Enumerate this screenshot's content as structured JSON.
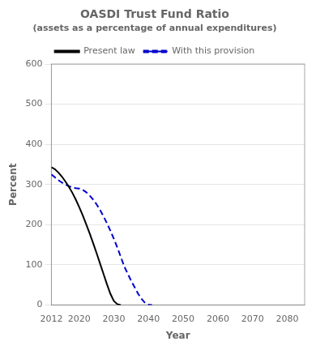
{
  "chart_data": {
    "type": "line",
    "title": "OASDI Trust Fund Ratio",
    "subtitle": "(assets as a percentage of annual expenditures)",
    "x_label": "Year",
    "y_label": "Percent",
    "x": [
      2012,
      2013,
      2014,
      2015,
      2016,
      2017,
      2018,
      2019,
      2020,
      2021,
      2022,
      2023,
      2024,
      2025,
      2026,
      2027,
      2028,
      2029,
      2030,
      2031,
      2032,
      2033,
      2034,
      2035,
      2036,
      2037,
      2038,
      2039,
      2040,
      2041
    ],
    "series": [
      {
        "name": "Present law",
        "color": "#000000",
        "line_style": "solid",
        "values": [
          343,
          338,
          330,
          320,
          308,
          295,
          280,
          263,
          244,
          224,
          202,
          179,
          155,
          130,
          104,
          78,
          52,
          28,
          10,
          2,
          0,
          null,
          null,
          null,
          null,
          null,
          null,
          null,
          null,
          null
        ]
      },
      {
        "name": "With this provision",
        "color": "#0000cc",
        "line_style": "dashed",
        "values": [
          325,
          318,
          311,
          305,
          300,
          296,
          293,
          291,
          290,
          287,
          281,
          273,
          263,
          251,
          237,
          221,
          204,
          185,
          165,
          143,
          120,
          96,
          78,
          60,
          44,
          28,
          15,
          5,
          1,
          0
        ]
      }
    ],
    "xlim": [
      2012,
      2085
    ],
    "xticks": [
      2012,
      2020,
      2030,
      2040,
      2050,
      2060,
      2070,
      2080
    ],
    "ylim": [
      0,
      600
    ],
    "yticks": [
      0,
      100,
      200,
      300,
      400,
      500,
      600
    ],
    "grid": "y",
    "legend": "top"
  }
}
